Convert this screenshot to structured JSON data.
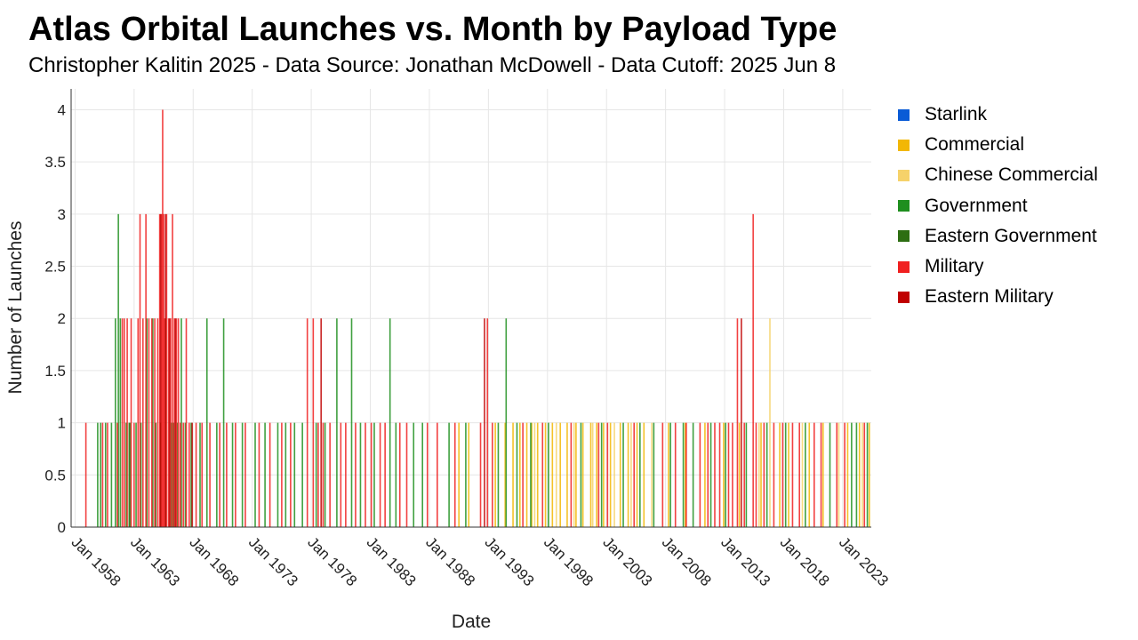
{
  "page": {
    "title": "Atlas Orbital Launches vs. Month by Payload Type",
    "subtitle": "Christopher Kalitin 2025 - Data Source: Jonathan McDowell - Data Cutoff: 2025 Jun 8"
  },
  "colors": {
    "Starlink": "#0a5bd6",
    "Commercial": "#f2b705",
    "Chinese Commercial": "#f6d26a",
    "Government": "#1f8f1f",
    "Eastern Government": "#2d6e12",
    "Military": "#f02020",
    "Eastern Military": "#c00000"
  },
  "chart_data": {
    "type": "bar",
    "title": "Atlas Orbital Launches vs. Month by Payload Type",
    "subtitle": "Christopher Kalitin 2025 - Data Source: Jonathan McDowell - Data Cutoff: 2025 Jun 8",
    "xlabel": "Date",
    "ylabel": "Number of Launches",
    "ylim": [
      0,
      4.2
    ],
    "xlim": [
      "1957-09",
      "2025-06"
    ],
    "yticks": [
      "0",
      "0.5",
      "1",
      "1.5",
      "2",
      "2.5",
      "3",
      "3.5",
      "4"
    ],
    "xticks": [
      "Jan 1958",
      "Jan 1963",
      "Jan 1968",
      "Jan 1973",
      "Jan 1978",
      "Jan 1983",
      "Jan 1988",
      "Jan 1993",
      "Jan 1998",
      "Jan 2003",
      "Jan 2008",
      "Jan 2013",
      "Jan 2018",
      "Jan 2023"
    ],
    "grid": true,
    "legend_position": "right",
    "series": [
      {
        "name": "Starlink",
        "points": []
      },
      {
        "name": "Commercial",
        "points": [
          [
            "1990-07",
            1
          ],
          [
            "1991-05",
            1
          ],
          [
            "1993-08",
            1
          ],
          [
            "1994-06",
            1
          ],
          [
            "1995-02",
            1
          ],
          [
            "1995-09",
            1
          ],
          [
            "1996-04",
            1
          ],
          [
            "1996-09",
            1
          ],
          [
            "1997-03",
            1
          ],
          [
            "1997-11",
            1
          ],
          [
            "1998-06",
            1
          ],
          [
            "1999-02",
            1
          ],
          [
            "1999-09",
            1
          ],
          [
            "2000-06",
            1
          ],
          [
            "2001-01",
            1
          ],
          [
            "2001-09",
            1
          ],
          [
            "2002-03",
            1
          ],
          [
            "2002-10",
            1
          ],
          [
            "2003-05",
            1
          ],
          [
            "2004-03",
            1
          ],
          [
            "2004-11",
            1
          ],
          [
            "2005-08",
            1
          ],
          [
            "2006-03",
            1
          ],
          [
            "2008-04",
            1
          ],
          [
            "2009-09",
            1
          ],
          [
            "2011-05",
            1
          ],
          [
            "2012-12",
            1
          ],
          [
            "2014-04",
            1
          ],
          [
            "2016-02",
            1
          ],
          [
            "2017-09",
            1
          ],
          [
            "2018-06",
            1
          ],
          [
            "2020-03",
            1
          ],
          [
            "2021-05",
            1
          ],
          [
            "2023-06",
            1
          ],
          [
            "2024-06",
            1
          ],
          [
            "2025-04",
            1
          ]
        ]
      },
      {
        "name": "Chinese Commercial",
        "points": [
          [
            "1996-12",
            1
          ],
          [
            "1998-10",
            1
          ],
          [
            "2000-04",
            1
          ],
          [
            "2001-11",
            1
          ],
          [
            "2003-09",
            1
          ],
          [
            "2005-02",
            1
          ],
          [
            "2006-11",
            1
          ],
          [
            "2015-12",
            1
          ],
          [
            "2016-11",
            2
          ],
          [
            "2019-08",
            1
          ],
          [
            "2022-09",
            1
          ],
          [
            "2024-09",
            1
          ]
        ]
      },
      {
        "name": "Government",
        "points": [
          [
            "1959-12",
            1
          ],
          [
            "1960-03",
            1
          ],
          [
            "1960-08",
            1
          ],
          [
            "1961-02",
            1
          ],
          [
            "1961-06",
            2
          ],
          [
            "1961-09",
            3
          ],
          [
            "1961-11",
            2
          ],
          [
            "1962-05",
            1
          ],
          [
            "1962-09",
            1
          ],
          [
            "1963-03",
            1
          ],
          [
            "1963-08",
            1
          ],
          [
            "1964-02",
            2
          ],
          [
            "1964-08",
            2
          ],
          [
            "1965-04",
            1
          ],
          [
            "1965-09",
            2
          ],
          [
            "1966-03",
            1
          ],
          [
            "1966-09",
            1
          ],
          [
            "1967-01",
            2
          ],
          [
            "1967-05",
            1
          ],
          [
            "1967-11",
            1
          ],
          [
            "1968-08",
            1
          ],
          [
            "1969-03",
            2
          ],
          [
            "1970-01",
            1
          ],
          [
            "1970-08",
            2
          ],
          [
            "1971-05",
            1
          ],
          [
            "1972-03",
            1
          ],
          [
            "1973-04",
            1
          ],
          [
            "1974-02",
            1
          ],
          [
            "1975-03",
            1
          ],
          [
            "1975-11",
            1
          ],
          [
            "1976-08",
            1
          ],
          [
            "1977-04",
            1
          ],
          [
            "1978-06",
            1
          ],
          [
            "1979-03",
            1
          ],
          [
            "1980-03",
            2
          ],
          [
            "1981-06",
            2
          ],
          [
            "1982-03",
            1
          ],
          [
            "1983-05",
            1
          ],
          [
            "1984-09",
            2
          ],
          [
            "1985-03",
            1
          ],
          [
            "1986-09",
            1
          ],
          [
            "1987-06",
            1
          ],
          [
            "1989-09",
            1
          ],
          [
            "1991-02",
            1
          ],
          [
            "1993-11",
            1
          ],
          [
            "1994-07",
            2
          ],
          [
            "1995-06",
            1
          ],
          [
            "1996-08",
            1
          ],
          [
            "1998-02",
            1
          ],
          [
            "2000-11",
            1
          ],
          [
            "2002-08",
            1
          ],
          [
            "2004-06",
            1
          ],
          [
            "2005-11",
            1
          ],
          [
            "2007-01",
            1
          ],
          [
            "2008-06",
            1
          ],
          [
            "2009-07",
            1
          ],
          [
            "2010-05",
            1
          ],
          [
            "2011-11",
            1
          ],
          [
            "2013-02",
            1
          ],
          [
            "2014-11",
            1
          ],
          [
            "2016-08",
            1
          ],
          [
            "2018-03",
            1
          ],
          [
            "2019-11",
            1
          ],
          [
            "2021-12",
            1
          ],
          [
            "2023-10",
            1
          ],
          [
            "2024-03",
            1
          ],
          [
            "2025-02",
            1
          ]
        ]
      },
      {
        "name": "Eastern Government",
        "points": [
          [
            "1962-08",
            1
          ],
          [
            "1964-11",
            1
          ],
          [
            "1966-05",
            1
          ]
        ]
      },
      {
        "name": "Military",
        "points": [
          [
            "1958-12",
            1
          ],
          [
            "1960-05",
            1
          ],
          [
            "1960-10",
            1
          ],
          [
            "1961-08",
            1
          ],
          [
            "1962-01",
            2
          ],
          [
            "1962-03",
            2
          ],
          [
            "1962-06",
            2
          ],
          [
            "1962-10",
            2
          ],
          [
            "1963-01",
            1
          ],
          [
            "1963-05",
            2
          ],
          [
            "1963-07",
            3
          ],
          [
            "1963-10",
            2
          ],
          [
            "1964-01",
            3
          ],
          [
            "1964-04",
            2
          ],
          [
            "1964-07",
            2
          ],
          [
            "1964-10",
            2
          ],
          [
            "1965-01",
            2
          ],
          [
            "1965-03",
            3
          ],
          [
            "1965-05",
            3
          ],
          [
            "1965-06",
            4
          ],
          [
            "1965-07",
            3
          ],
          [
            "1965-08",
            2
          ],
          [
            "1965-10",
            3
          ],
          [
            "1965-12",
            2
          ],
          [
            "1966-02",
            2
          ],
          [
            "1966-04",
            3
          ],
          [
            "1966-06",
            2
          ],
          [
            "1966-08",
            2
          ],
          [
            "1966-10",
            2
          ],
          [
            "1966-12",
            1
          ],
          [
            "1967-03",
            1
          ],
          [
            "1967-06",
            2
          ],
          [
            "1967-09",
            1
          ],
          [
            "1968-04",
            1
          ],
          [
            "1968-10",
            1
          ],
          [
            "1969-06",
            1
          ],
          [
            "1970-04",
            1
          ],
          [
            "1970-11",
            1
          ],
          [
            "1971-08",
            1
          ],
          [
            "1972-06",
            1
          ],
          [
            "1973-08",
            1
          ],
          [
            "1974-07",
            1
          ],
          [
            "1975-07",
            1
          ],
          [
            "1976-04",
            1
          ],
          [
            "1977-09",
            2
          ],
          [
            "1978-03",
            2
          ],
          [
            "1978-08",
            1
          ],
          [
            "1979-01",
            1
          ],
          [
            "1979-08",
            1
          ],
          [
            "1980-07",
            1
          ],
          [
            "1980-12",
            1
          ],
          [
            "1981-10",
            1
          ],
          [
            "1982-08",
            1
          ],
          [
            "1983-02",
            1
          ],
          [
            "1983-11",
            1
          ],
          [
            "1984-04",
            1
          ],
          [
            "1985-07",
            1
          ],
          [
            "1986-02",
            1
          ],
          [
            "1987-11",
            1
          ],
          [
            "1988-09",
            1
          ],
          [
            "1990-03",
            1
          ],
          [
            "1992-05",
            1
          ],
          [
            "1992-12",
            2
          ],
          [
            "1993-05",
            1
          ],
          [
            "1995-12",
            1
          ],
          [
            "1997-08",
            1
          ],
          [
            "2000-01",
            1
          ],
          [
            "2002-05",
            1
          ],
          [
            "2003-02",
            1
          ],
          [
            "2005-05",
            1
          ],
          [
            "2007-10",
            1
          ],
          [
            "2008-11",
            1
          ],
          [
            "2009-10",
            1
          ],
          [
            "2010-12",
            1
          ],
          [
            "2011-08",
            1
          ],
          [
            "2012-03",
            1
          ],
          [
            "2012-08",
            1
          ],
          [
            "2013-05",
            1
          ],
          [
            "2013-09",
            1
          ],
          [
            "2014-02",
            2
          ],
          [
            "2014-09",
            1
          ],
          [
            "2015-06",
            3
          ],
          [
            "2015-09",
            1
          ],
          [
            "2016-05",
            1
          ],
          [
            "2017-03",
            1
          ],
          [
            "2017-12",
            1
          ],
          [
            "2018-10",
            1
          ],
          [
            "2019-05",
            1
          ],
          [
            "2020-08",
            1
          ],
          [
            "2021-03",
            1
          ],
          [
            "2022-07",
            1
          ],
          [
            "2023-03",
            1
          ],
          [
            "2024-11",
            1
          ]
        ]
      },
      {
        "name": "Eastern Military",
        "points": [
          [
            "1965-04",
            3
          ],
          [
            "1965-09",
            3
          ],
          [
            "1966-01",
            2
          ],
          [
            "1966-07",
            2
          ],
          [
            "1967-12",
            1
          ],
          [
            "1978-11",
            2
          ],
          [
            "1992-09",
            2
          ],
          [
            "2014-06",
            2
          ]
        ]
      }
    ]
  }
}
